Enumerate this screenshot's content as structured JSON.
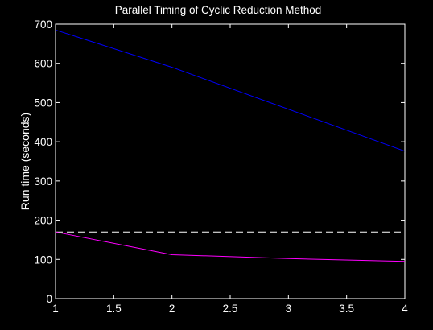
{
  "chart_data": {
    "type": "line",
    "title": "Parallel Timing of Cyclic Reduction Method",
    "xlabel": "",
    "ylabel": "Run time (seconds)",
    "xlim": [
      1,
      4
    ],
    "ylim": [
      0,
      700
    ],
    "x_ticks": [
      1,
      1.5,
      2,
      2.5,
      3,
      3.5,
      4
    ],
    "x_tick_labels": [
      "1",
      "1.5",
      "2",
      "2.5",
      "3",
      "3.5",
      "4"
    ],
    "y_ticks": [
      0,
      100,
      200,
      300,
      400,
      500,
      600,
      700
    ],
    "y_tick_labels": [
      "0",
      "100",
      "200",
      "300",
      "400",
      "500",
      "600",
      "700"
    ],
    "grid": false,
    "background": "#000000",
    "axis_color": "#ffffff",
    "series": [
      {
        "color": "#0000ff",
        "style": "solid",
        "x": [
          1,
          2,
          3,
          4
        ],
        "values": [
          685,
          590,
          483,
          376
        ]
      },
      {
        "color": "#ffffff",
        "style": "dashed",
        "x": [
          1,
          4
        ],
        "values": [
          170,
          170
        ]
      },
      {
        "color": "#ff00ff",
        "style": "solid",
        "x": [
          1,
          2,
          3,
          4
        ],
        "values": [
          170,
          112,
          102,
          95
        ]
      }
    ]
  }
}
